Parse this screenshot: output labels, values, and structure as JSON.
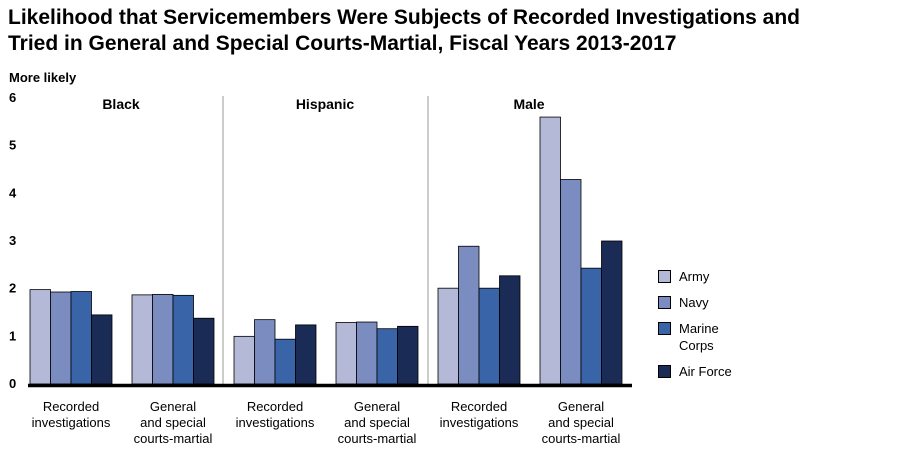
{
  "title_lines": [
    "Likelihood that Servicemembers Were Subjects of Recorded Investigations and",
    "Tried in General and Special Courts-Martial, Fiscal Years 2013-2017"
  ],
  "chart_data": {
    "type": "bar",
    "ylabel": "More likely",
    "ylim": [
      0,
      6
    ],
    "yticks": [
      "0",
      "1",
      "2",
      "3",
      "4",
      "5",
      "6"
    ],
    "colors": [
      "#b4b9d8",
      "#7b8dc0",
      "#3a64a8",
      "#1a2c55"
    ],
    "groups": [
      {
        "name": "Black",
        "categories": [
          "Recorded\ninvestigations",
          "General\nand special\ncourts-martial"
        ],
        "values": [
          [
            1.98,
            1.93,
            1.94,
            1.45
          ],
          [
            1.87,
            1.88,
            1.86,
            1.38
          ]
        ]
      },
      {
        "name": "Hispanic",
        "categories": [
          "Recorded\ninvestigations",
          "General\nand special\ncourts-martial"
        ],
        "values": [
          [
            1.0,
            1.35,
            0.94,
            1.24
          ],
          [
            1.29,
            1.3,
            1.16,
            1.21
          ]
        ]
      },
      {
        "name": "Male",
        "categories": [
          "Recorded\ninvestigations",
          "General\nand special\ncourts-martial"
        ],
        "values": [
          [
            2.01,
            2.89,
            2.01,
            2.27
          ],
          [
            5.6,
            4.29,
            2.43,
            3.0
          ]
        ]
      }
    ],
    "series": [
      {
        "name": "Army"
      },
      {
        "name": "Navy"
      },
      {
        "name": "Marine\nCorps"
      },
      {
        "name": "Air Force"
      }
    ],
    "legend_position": "right",
    "grid": false
  }
}
